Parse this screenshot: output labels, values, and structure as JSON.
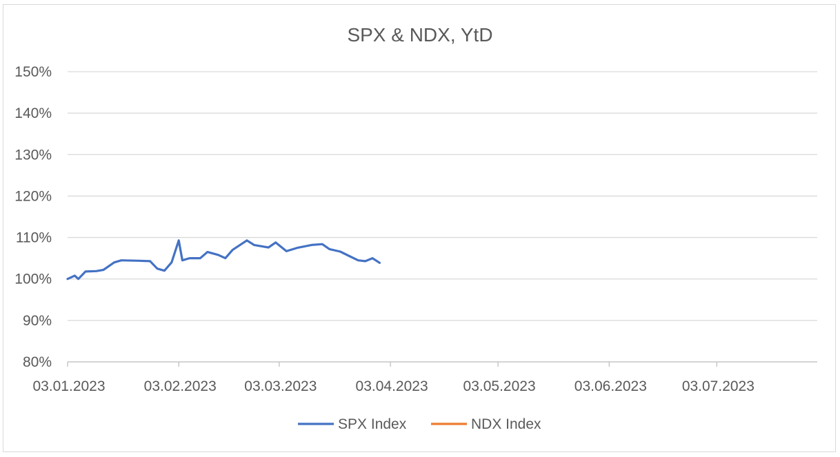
{
  "chart_data": {
    "type": "line",
    "title": "SPX & NDX, YtD",
    "xlabel": "",
    "ylabel": "",
    "ylim": [
      0.8,
      1.5
    ],
    "y_ticks": [
      0.8,
      0.9,
      1.0,
      1.1,
      1.2,
      1.3,
      1.4,
      1.5
    ],
    "y_tick_labels": [
      "80%",
      "90%",
      "100%",
      "110%",
      "120%",
      "130%",
      "140%",
      "150%"
    ],
    "x_tick_labels": [
      "03.01.2023",
      "03.02.2023",
      "03.03.2023",
      "03.04.2023",
      "03.05.2023",
      "03.06.2023",
      "03.07.2023"
    ],
    "x_tick_dates": [
      "2023-01-03",
      "2023-02-03",
      "2023-03-03",
      "2023-04-03",
      "2023-05-03",
      "2023-06-03",
      "2023-07-03"
    ],
    "x_range": [
      "2023-01-03",
      "2023-07-31"
    ],
    "grid": true,
    "legend_position": "bottom",
    "series": [
      {
        "name": "SPX Index",
        "color": "#4472c4",
        "points": [
          [
            "2023-01-03",
            1.0
          ],
          [
            "2023-01-05",
            1.008
          ],
          [
            "2023-01-06",
            1.0
          ],
          [
            "2023-01-08",
            1.018
          ],
          [
            "2023-01-11",
            1.019
          ],
          [
            "2023-01-13",
            1.022
          ],
          [
            "2023-01-16",
            1.04
          ],
          [
            "2023-01-18",
            1.045
          ],
          [
            "2023-01-23",
            1.044
          ],
          [
            "2023-01-26",
            1.043
          ],
          [
            "2023-01-28",
            1.025
          ],
          [
            "2023-01-30",
            1.02
          ],
          [
            "2023-02-01",
            1.04
          ],
          [
            "2023-02-04",
            1.045
          ],
          [
            "2023-02-06",
            1.05
          ],
          [
            "2023-02-09",
            1.05
          ],
          [
            "2023-02-11",
            1.065
          ],
          [
            "2023-02-14",
            1.058
          ],
          [
            "2023-02-16",
            1.05
          ],
          [
            "2023-02-18",
            1.07
          ],
          [
            "2023-02-22",
            1.093
          ],
          [
            "2023-02-24",
            1.082
          ],
          [
            "2023-02-28",
            1.076
          ],
          [
            "2023-03-02",
            1.088
          ],
          [
            "2023-03-05",
            1.067
          ],
          [
            "2023-03-08",
            1.075
          ],
          [
            "2023-03-12",
            1.082
          ],
          [
            "2023-03-15",
            1.084
          ],
          [
            "2023-03-17",
            1.072
          ],
          [
            "2023-03-20",
            1.066
          ],
          [
            "2023-03-25",
            1.045
          ],
          [
            "2023-03-27",
            1.043
          ],
          [
            "2023-03-29",
            1.05
          ],
          [
            "2023-03-31",
            1.039
          ],
          [
            "2023-02-03",
            1.093
          ]
        ]
      },
      {
        "name": "NDX Index",
        "color": "#ed7d31",
        "points": []
      }
    ]
  }
}
